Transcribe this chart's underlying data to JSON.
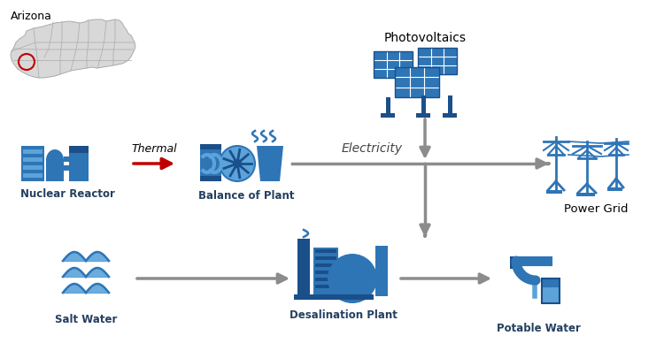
{
  "bg_color": "#ffffff",
  "ic": "#2E75B6",
  "icd": "#1B4F8A",
  "icl": "#5BA3D9",
  "gray": "#8C8C8C",
  "red": "#C00000",
  "lc": "#243F60",
  "map_fill": "#D8D8D8",
  "map_edge": "#AAAAAA",
  "figsize": [
    7.5,
    3.97
  ],
  "dpi": 100,
  "labels": {
    "arizona": "Arizona",
    "nuclear": "Nuclear Reactor",
    "balance": "Balance of Plant",
    "thermal": "Thermal",
    "electricity": "Electricity",
    "pv": "Photovoltaics",
    "grid": "Power Grid",
    "saltwater": "Salt Water",
    "desal": "Desalination Plant",
    "potable": "Potable Water"
  }
}
